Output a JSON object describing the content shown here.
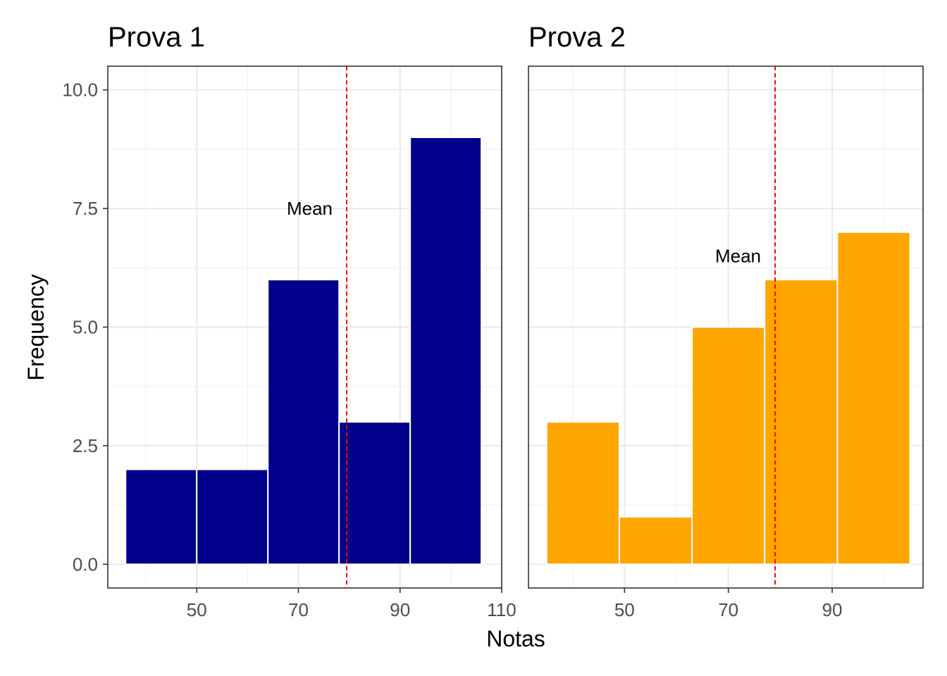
{
  "chart_data": [
    {
      "type": "bar",
      "title": "Prova 1",
      "bins": [
        {
          "x_start": 36,
          "x_end": 50,
          "count": 2
        },
        {
          "x_start": 50,
          "x_end": 64,
          "count": 2
        },
        {
          "x_start": 64,
          "x_end": 78,
          "count": 6
        },
        {
          "x_start": 78,
          "x_end": 92,
          "count": 3
        },
        {
          "x_start": 92,
          "x_end": 106,
          "count": 9
        }
      ],
      "x_ticks": [
        "50",
        "70",
        "90",
        "110"
      ],
      "xlim": [
        32.5,
        110.0
      ],
      "mean": 79.5,
      "mean_label": "Mean",
      "mean_label_y": 7.5,
      "color": "#00008B",
      "mean_line_color": "#FF0000"
    },
    {
      "type": "bar",
      "title": "Prova 2",
      "bins": [
        {
          "x_start": 35,
          "x_end": 49,
          "count": 3
        },
        {
          "x_start": 49,
          "x_end": 63,
          "count": 1
        },
        {
          "x_start": 63,
          "x_end": 77,
          "count": 5
        },
        {
          "x_start": 77,
          "x_end": 91,
          "count": 6
        },
        {
          "x_start": 91,
          "x_end": 105,
          "count": 7
        }
      ],
      "x_ticks": [
        "50",
        "70",
        "90"
      ],
      "xlim": [
        31.5,
        107.5
      ],
      "mean": 79,
      "mean_label": "Mean",
      "mean_label_y": 6.5,
      "color": "#FFA500",
      "mean_line_color": "#FF0000"
    }
  ],
  "shared": {
    "xlabel": "Notas",
    "ylabel": "Frequency",
    "y_ticks": [
      "0.0",
      "2.5",
      "5.0",
      "7.5",
      "10.0"
    ],
    "ylim": [
      -0.5,
      10.5
    ],
    "grid": true
  }
}
